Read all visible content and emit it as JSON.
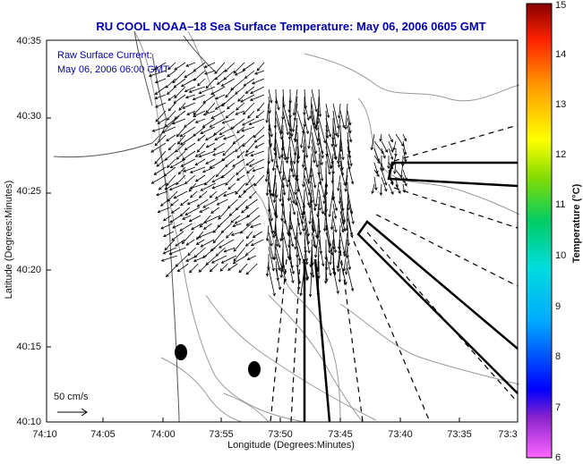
{
  "title": "RU COOL  NOAA–18  Sea Surface Temperature:  May 06, 2006 0605 GMT",
  "legend": {
    "line1": "Raw Surface Current:",
    "line2": "May 06, 2006 06:00 GMT"
  },
  "scale_label": "50 cm/s",
  "axes": {
    "x_label": "Longitude (Degrees:Minutes)",
    "y_label": "Latitude (Degrees:Minutes)",
    "x_ticks": [
      "74:10",
      "74:05",
      "74:00",
      "73:55",
      "73:50",
      "73:45",
      "73:40",
      "73:35",
      "73:3"
    ],
    "y_ticks": [
      "40:35",
      "40:30",
      "40:25",
      "40:20",
      "40:15",
      "40:10"
    ]
  },
  "colorbar": {
    "label": "Temperature (°C)",
    "ticks": [
      "15",
      "14",
      "13",
      "12",
      "11",
      "10",
      "9",
      "8",
      "7",
      "6"
    ],
    "min": 6,
    "max": 15
  },
  "colors": {
    "title": "#0000aa",
    "frame": "#000000",
    "contour": "#888888",
    "arrow": "#000000"
  }
}
